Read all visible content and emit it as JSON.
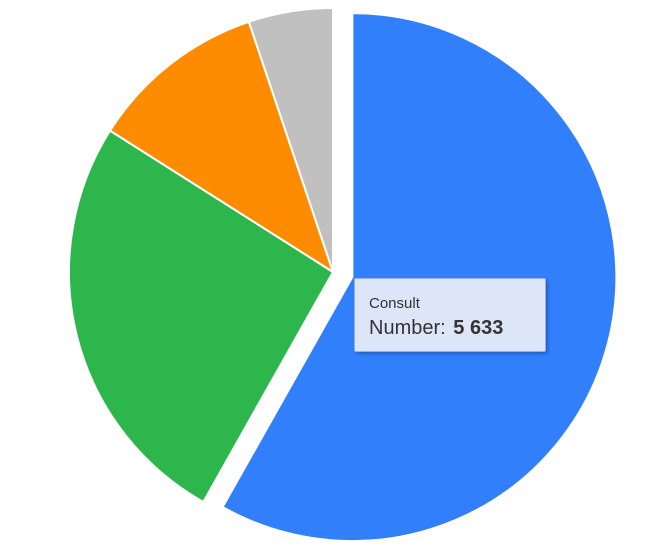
{
  "chart_data": {
    "type": "pie",
    "title": "",
    "slices": [
      {
        "label": "Consult",
        "value": 5633,
        "color": "#327ffc",
        "exploded": true
      },
      {
        "value": 2500,
        "color": "#2db64b"
      },
      {
        "value": 1050,
        "color": "#ff8c00"
      },
      {
        "value": 500,
        "color": "#c0c0c0"
      }
    ],
    "legend": "none"
  },
  "tooltip": {
    "title": "Consult",
    "metric_label": "Number:",
    "metric_value": "5 633"
  }
}
